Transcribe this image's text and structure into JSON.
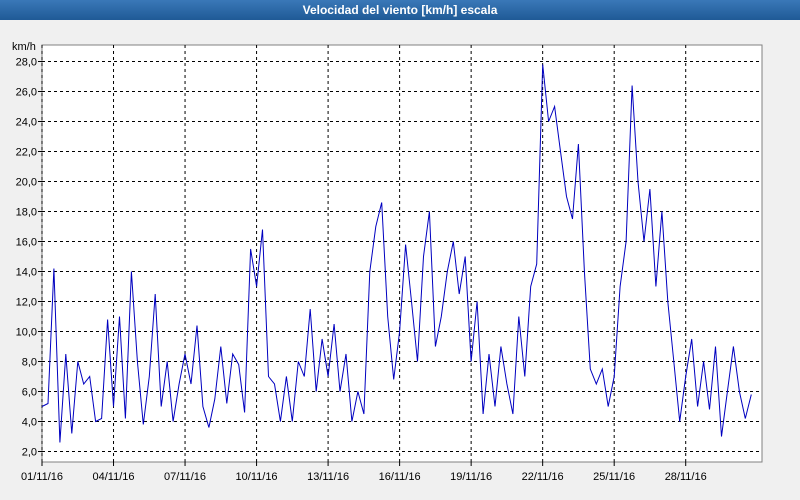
{
  "chart_data": {
    "type": "line",
    "title": "Velocidad del viento [km/h] escala",
    "y_label": "km/h",
    "grid": true,
    "xlim": [
      1,
      31.2
    ],
    "ylim": [
      1.3,
      29.1
    ],
    "xticks": [
      {
        "value": 1,
        "label": "01/11/16"
      },
      {
        "value": 4,
        "label": "04/11/16"
      },
      {
        "value": 7,
        "label": "07/11/16"
      },
      {
        "value": 10,
        "label": "10/11/16"
      },
      {
        "value": 13,
        "label": "13/11/16"
      },
      {
        "value": 16,
        "label": "16/11/16"
      },
      {
        "value": 19,
        "label": "19/11/16"
      },
      {
        "value": 22,
        "label": "22/11/16"
      },
      {
        "value": 25,
        "label": "25/11/16"
      },
      {
        "value": 28,
        "label": "28/11/16"
      }
    ],
    "yticks": [
      {
        "value": 2,
        "label": "2,0"
      },
      {
        "value": 4,
        "label": "4,0"
      },
      {
        "value": 6,
        "label": "6,0"
      },
      {
        "value": 8,
        "label": "8,0"
      },
      {
        "value": 10,
        "label": "10,0"
      },
      {
        "value": 12,
        "label": "12,0"
      },
      {
        "value": 14,
        "label": "14,0"
      },
      {
        "value": 16,
        "label": "16,0"
      },
      {
        "value": 18,
        "label": "18,0"
      },
      {
        "value": 20,
        "label": "20,0"
      },
      {
        "value": 22,
        "label": "22,0"
      },
      {
        "value": 24,
        "label": "24,0"
      },
      {
        "value": 26,
        "label": "26,0"
      },
      {
        "value": 28,
        "label": "28,0"
      }
    ],
    "x": [
      1,
      1.25,
      1.5,
      1.75,
      2,
      2.25,
      2.5,
      2.75,
      3,
      3.25,
      3.5,
      3.75,
      4,
      4.25,
      4.5,
      4.75,
      5,
      5.25,
      5.5,
      5.75,
      6,
      6.25,
      6.5,
      6.75,
      7,
      7.25,
      7.5,
      7.75,
      8,
      8.25,
      8.5,
      8.75,
      9,
      9.25,
      9.5,
      9.75,
      10,
      10.25,
      10.5,
      10.75,
      11,
      11.25,
      11.5,
      11.75,
      12,
      12.25,
      12.5,
      12.75,
      13,
      13.25,
      13.5,
      13.75,
      14,
      14.25,
      14.5,
      14.75,
      15,
      15.25,
      15.5,
      15.75,
      16,
      16.25,
      16.5,
      16.75,
      17,
      17.25,
      17.5,
      17.75,
      18,
      18.25,
      18.5,
      18.75,
      19,
      19.25,
      19.5,
      19.75,
      20,
      20.25,
      20.5,
      20.75,
      21,
      21.25,
      21.5,
      21.75,
      22,
      22.25,
      22.5,
      22.75,
      23,
      23.25,
      23.5,
      23.75,
      24,
      24.25,
      24.5,
      24.75,
      25,
      25.25,
      25.5,
      25.75,
      26,
      26.25,
      26.5,
      26.75,
      27,
      27.25,
      27.5,
      27.75,
      28,
      28.25,
      28.5,
      28.75,
      29,
      29.25,
      29.5,
      29.75,
      30,
      30.25,
      30.5,
      30.75
    ],
    "series": [
      {
        "color": "#0000c0",
        "values": [
          5.0,
          5.2,
          14.2,
          2.6,
          8.5,
          3.2,
          8.0,
          6.5,
          7.0,
          4.0,
          4.2,
          10.8,
          5.0,
          11.0,
          4.2,
          14.0,
          8.0,
          3.8,
          7.0,
          12.5,
          5.0,
          8.0,
          4.0,
          6.5,
          8.5,
          6.5,
          10.4,
          5.0,
          3.6,
          5.5,
          9.0,
          5.2,
          8.5,
          7.8,
          4.6,
          15.5,
          13.0,
          16.8,
          7.0,
          6.5,
          4.0,
          7.0,
          4.0,
          8.0,
          7.0,
          11.5,
          6.0,
          9.5,
          7.0,
          10.5,
          6.0,
          8.5,
          4.0,
          6.0,
          4.5,
          14.0,
          17.0,
          18.6,
          11.0,
          6.8,
          10.0,
          15.8,
          12.0,
          8.0,
          15.0,
          18.0,
          9.0,
          11.0,
          14.0,
          16.0,
          12.5,
          15.0,
          8.0,
          12.0,
          4.5,
          8.5,
          5.0,
          9.0,
          6.5,
          4.5,
          11.0,
          7.0,
          13.0,
          14.5,
          27.8,
          24.0,
          25.0,
          22.0,
          19.0,
          17.5,
          22.5,
          14.0,
          7.5,
          6.5,
          7.5,
          5.0,
          7.0,
          13.0,
          16.0,
          26.4,
          20.0,
          16.0,
          19.5,
          13.0,
          18.0,
          12.0,
          8.0,
          4.0,
          7.0,
          9.5,
          5.0,
          8.0,
          4.8,
          9.0,
          3.0,
          6.0,
          9.0,
          6.0,
          4.2,
          5.8
        ]
      }
    ]
  }
}
